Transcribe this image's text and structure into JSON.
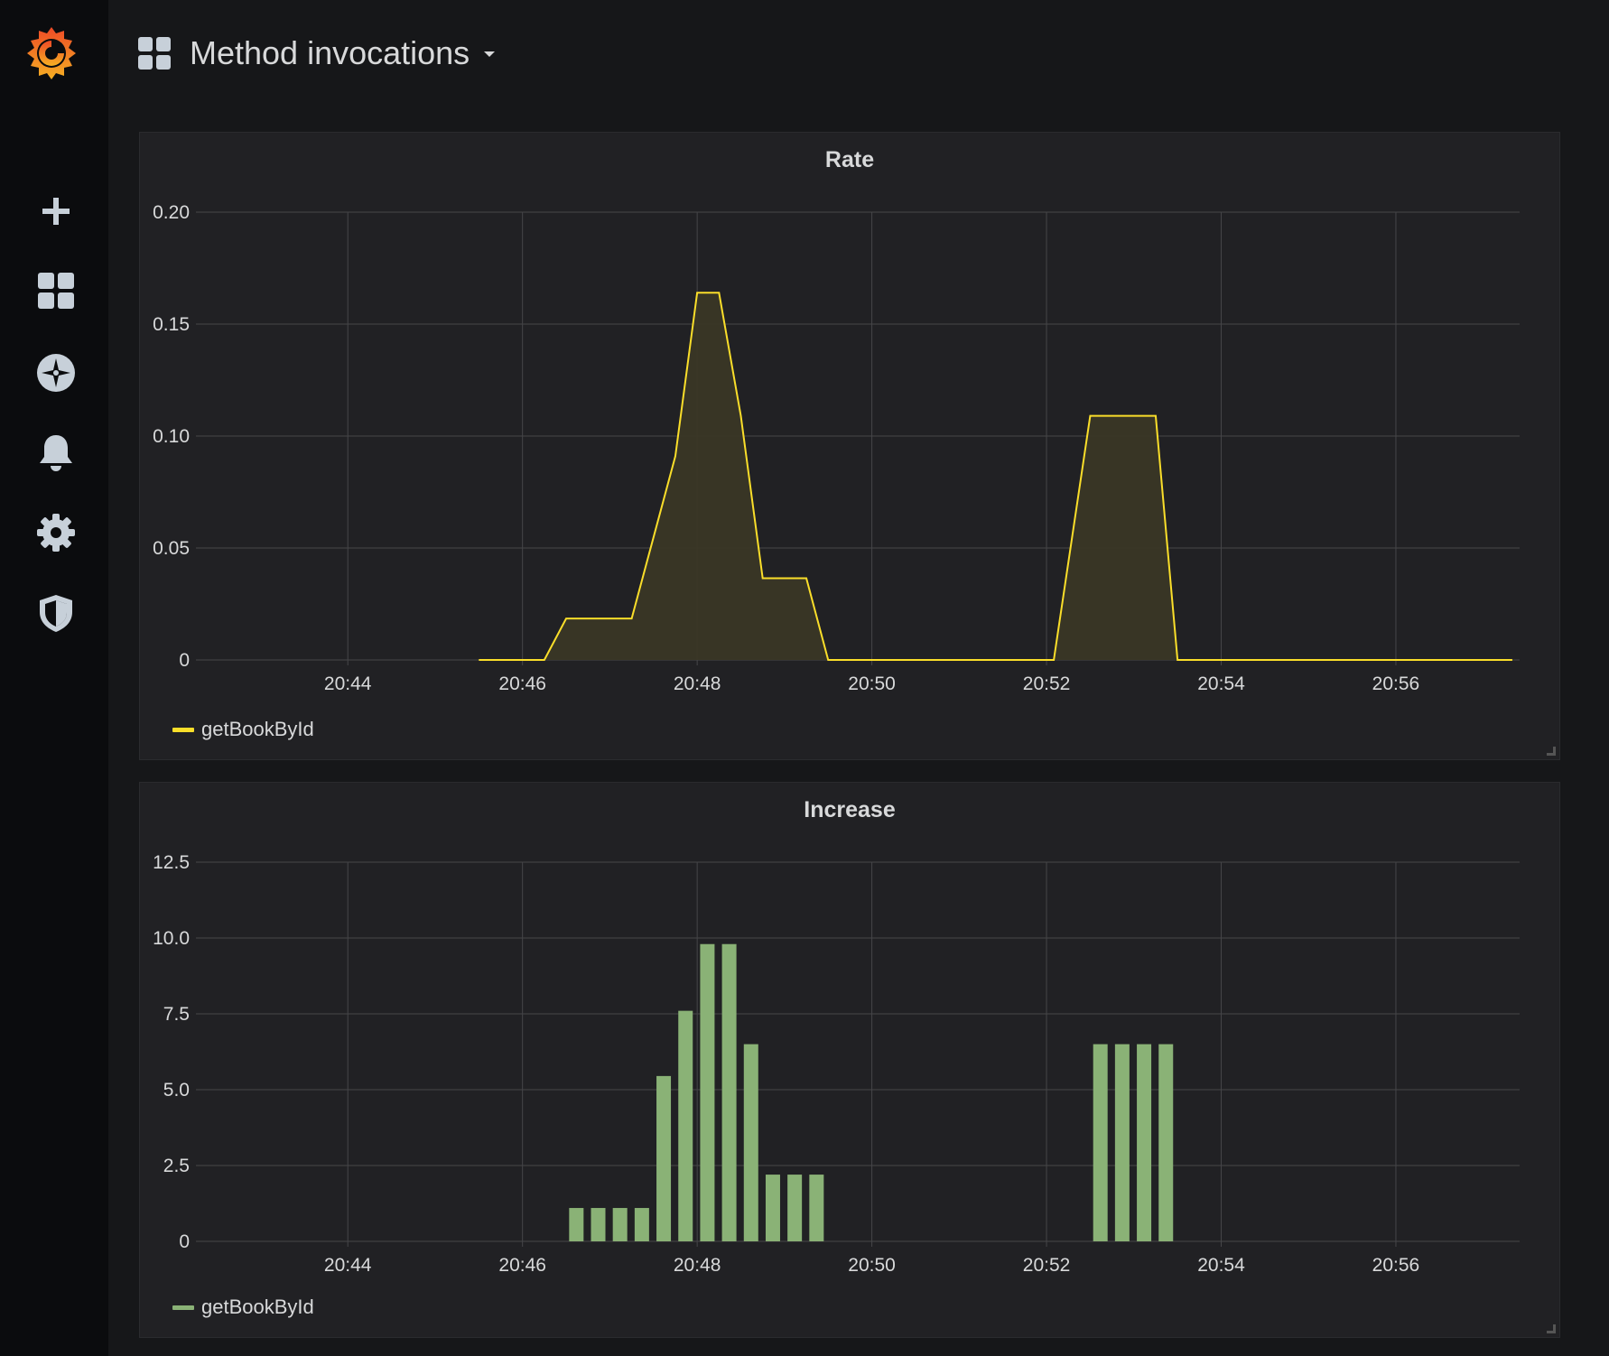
{
  "colors": {
    "background": "#161719",
    "sidebar": "#0b0c0e",
    "panel": "#212124",
    "grid": "#464649",
    "rate_line": "#fade2a",
    "rate_fill": "#3a3726",
    "increase_bar": "#8ab276"
  },
  "sidebar": {
    "logo_icon": "grafana-logo-icon",
    "items": [
      {
        "icon": "plus-icon"
      },
      {
        "icon": "dashboards-grid-icon"
      },
      {
        "icon": "explore-compass-icon"
      },
      {
        "icon": "alerting-bell-icon"
      },
      {
        "icon": "configuration-gear-icon"
      },
      {
        "icon": "server-admin-shield-icon"
      }
    ]
  },
  "header": {
    "title": "Method invocations",
    "icon": "dashboards-grid-icon",
    "dropdown_icon": "caret-down-icon"
  },
  "panels": [
    {
      "title": "Rate",
      "legend": "getBookById"
    },
    {
      "title": "Increase",
      "legend": "getBookById"
    }
  ],
  "chart_data": [
    {
      "type": "area",
      "title": "Rate",
      "xlabel": "",
      "ylabel": "",
      "x_ticks": [
        "20:44",
        "20:46",
        "20:48",
        "20:50",
        "20:52",
        "20:54",
        "20:56"
      ],
      "y_ticks": [
        "0",
        "0.05",
        "0.10",
        "0.15",
        "0.20"
      ],
      "ylim": [
        0,
        0.2
      ],
      "xlim": [
        "20:42:20",
        "20:57:25"
      ],
      "grid": true,
      "legend_position": "bottom-left",
      "series": [
        {
          "name": "getBookById",
          "color": "#fade2a",
          "points": [
            [
              "20:45:30",
              0
            ],
            [
              "20:46:15",
              0
            ],
            [
              "20:46:30",
              0.0185
            ],
            [
              "20:47:15",
              0.0185
            ],
            [
              "20:47:45",
              0.091
            ],
            [
              "20:48:00",
              0.164
            ],
            [
              "20:48:15",
              0.164
            ],
            [
              "20:48:30",
              0.109
            ],
            [
              "20:48:45",
              0.0365
            ],
            [
              "20:49:15",
              0.0365
            ],
            [
              "20:49:30",
              0
            ],
            [
              "20:52:05",
              0
            ],
            [
              "20:52:30",
              0.109
            ],
            [
              "20:53:15",
              0.109
            ],
            [
              "20:53:30",
              0
            ],
            [
              "20:57:20",
              0
            ]
          ]
        }
      ]
    },
    {
      "type": "bar",
      "title": "Increase",
      "xlabel": "",
      "ylabel": "",
      "x_ticks": [
        "20:44",
        "20:46",
        "20:48",
        "20:50",
        "20:52",
        "20:54",
        "20:56"
      ],
      "y_ticks": [
        "0",
        "2.5",
        "5.0",
        "7.5",
        "10.0",
        "12.5"
      ],
      "ylim": [
        0,
        12.5
      ],
      "xlim": [
        "20:42:20",
        "20:57:25"
      ],
      "grid": true,
      "legend_position": "bottom-left",
      "series": [
        {
          "name": "getBookById",
          "color": "#8ab276",
          "points": [
            [
              "20:46:37",
              1.1
            ],
            [
              "20:46:52",
              1.1
            ],
            [
              "20:47:07",
              1.1
            ],
            [
              "20:47:22",
              1.1
            ],
            [
              "20:47:37",
              5.45
            ],
            [
              "20:47:52",
              7.6
            ],
            [
              "20:48:07",
              9.8
            ],
            [
              "20:48:22",
              9.8
            ],
            [
              "20:48:37",
              6.5
            ],
            [
              "20:48:52",
              2.2
            ],
            [
              "20:49:07",
              2.2
            ],
            [
              "20:49:22",
              2.2
            ],
            [
              "20:52:37",
              6.5
            ],
            [
              "20:52:52",
              6.5
            ],
            [
              "20:53:07",
              6.5
            ],
            [
              "20:53:22",
              6.5
            ]
          ]
        }
      ]
    }
  ]
}
